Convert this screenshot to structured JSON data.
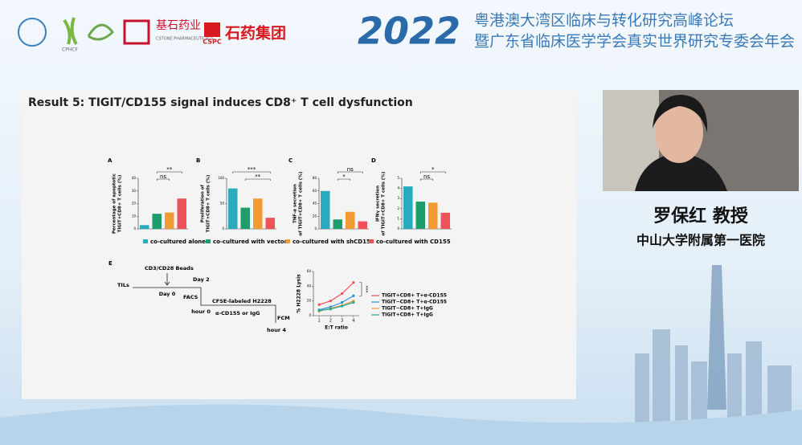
{
  "header": {
    "logos": [
      "CPHCF",
      "基石药业",
      "CSTONE PHARMACEUTICALS",
      "CSPC",
      "石药集团"
    ],
    "year": "2022",
    "title_lines": [
      "粤港澳大湾区临床与转化研究高峰论坛",
      "暨广东省临床医学学会真实世界研究专委会年会"
    ]
  },
  "slide": {
    "title": "Result 5: TIGIT/CD155 signal induces CD8⁺ T cell dysfunction",
    "bar_panels": [
      {
        "type": "bar",
        "letter": "A",
        "ylabel": [
          "Percentage of apoptotic",
          "TIGIT+CD8+ T cells (%)"
        ],
        "values": [
          3,
          12,
          13,
          24
        ],
        "ylim": [
          0,
          40
        ],
        "yticks": [
          0,
          10,
          20,
          30,
          40
        ],
        "significance": [
          "**",
          "ns"
        ]
      },
      {
        "type": "bar",
        "letter": "B",
        "ylabel": [
          "Proliferation of",
          "TIGIT+CD8+ T cells (%)"
        ],
        "values": [
          80,
          42,
          60,
          22
        ],
        "ylim": [
          0,
          100
        ],
        "yticks": [
          0,
          50,
          100
        ],
        "significance": [
          "***",
          "**"
        ]
      },
      {
        "type": "bar",
        "letter": "C",
        "ylabel": [
          "TNF-α secretion",
          "of TIGIT+CD8+ T cells (%)"
        ],
        "values": [
          60,
          15,
          27,
          12
        ],
        "ylim": [
          0,
          80
        ],
        "yticks": [
          0,
          20,
          40,
          60,
          80
        ],
        "significance": [
          "ns",
          "*"
        ]
      },
      {
        "type": "bar",
        "letter": "D",
        "ylabel": [
          "IFNγ secretion",
          "of TIGIT+CD8+ T cells (%)"
        ],
        "values": [
          4.2,
          2.7,
          2.6,
          1.6
        ],
        "ylim": [
          0,
          5
        ],
        "yticks": [
          0,
          1,
          2,
          3,
          4,
          5
        ],
        "significance": [
          "*",
          "ns"
        ]
      }
    ],
    "bar_legend": [
      {
        "name": "co-cultured alone",
        "color": "#2aaabf"
      },
      {
        "name": "co-cultured with vector",
        "color": "#1d9c6c"
      },
      {
        "name": "co-cultured with shCD155",
        "color": "#f29a33"
      },
      {
        "name": "co-cultured with CD155",
        "color": "#ef5257"
      }
    ],
    "timeline": {
      "letter": "E",
      "labels": [
        "CD3/CD28 Beads",
        "TILs",
        "Day 0",
        "Day 2",
        "FACS",
        "CFSE-labeled H2228",
        "hour 0",
        "α-CD155 or IgG",
        "FCM",
        "hour 4"
      ]
    },
    "line_chart": {
      "type": "line",
      "ylabel": "% H2228 Lysis",
      "xlabel": "E:T ratio",
      "x": [
        1,
        2,
        3,
        4
      ],
      "xlim": [
        0.5,
        4.5
      ],
      "xticks": [
        1,
        2,
        3,
        4
      ],
      "ylim": [
        0,
        60
      ],
      "yticks": [
        0,
        20,
        40,
        60
      ],
      "significance": "***",
      "series": [
        {
          "name": "TIGIT+CD8+ T+α-CD155",
          "color": "#ef5257",
          "values": [
            15,
            20,
            30,
            45
          ]
        },
        {
          "name": "TIGIT−CD8+ T+α-CD155",
          "color": "#2a8fd6",
          "values": [
            8,
            12,
            18,
            27
          ]
        },
        {
          "name": "TIGIT−CD8+ T+IgG",
          "color": "#f29a33",
          "values": [
            6,
            10,
            14,
            20
          ]
        },
        {
          "name": "TIGIT+CD8+ T+IgG",
          "color": "#1faa9a",
          "values": [
            7,
            9,
            13,
            18
          ]
        }
      ]
    }
  },
  "speaker": {
    "name": "罗保红 教授",
    "affiliation": "中山大学附属第一医院"
  }
}
